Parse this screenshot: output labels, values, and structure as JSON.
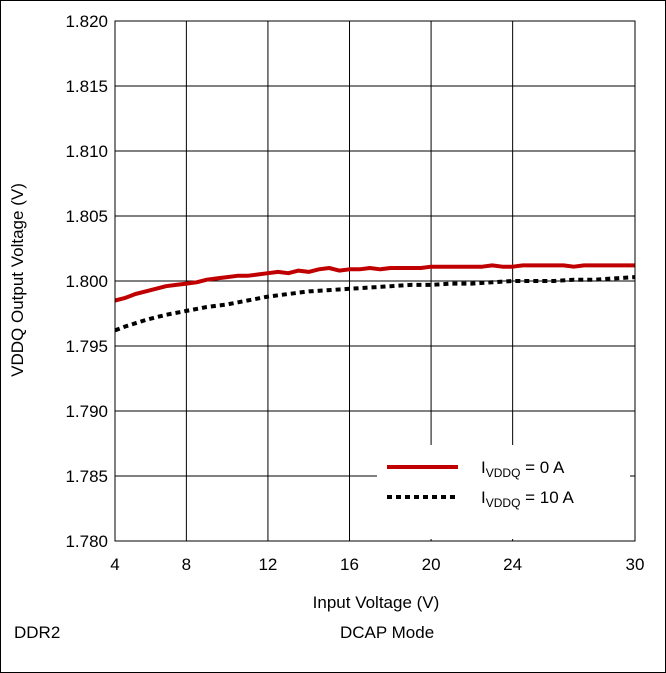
{
  "chart_data": {
    "type": "line",
    "xlabel": "Input Voltage (V)",
    "ylabel": "VDDQ Output Voltage (V)",
    "xlim": [
      4.5,
      30
    ],
    "ylim": [
      1.78,
      1.82
    ],
    "xticks": [
      4,
      8,
      12,
      16,
      20,
      24,
      30
    ],
    "xtick_labels": [
      "4",
      "8",
      "12",
      "16",
      "20",
      "24",
      "30"
    ],
    "yticks": [
      1.78,
      1.785,
      1.79,
      1.795,
      1.8,
      1.805,
      1.81,
      1.815,
      1.82
    ],
    "ytick_labels": [
      "1.780",
      "1.785",
      "1.790",
      "1.795",
      "1.800",
      "1.805",
      "1.810",
      "1.815",
      "1.820"
    ],
    "grid": true,
    "legend_position": "bottom-right",
    "series": [
      {
        "name": "IVDDQ = 0 A",
        "legend": {
          "main": "I",
          "sub": "VDDQ",
          "rest": " = 0 A"
        },
        "color": "#c00000",
        "style": "solid",
        "x": [
          4.5,
          5,
          5.5,
          6,
          6.5,
          7,
          7.5,
          8,
          8.5,
          9,
          9.5,
          10,
          10.5,
          11,
          11.5,
          12,
          12.5,
          13,
          13.5,
          14,
          14.5,
          15,
          15.5,
          16,
          16.5,
          17,
          17.5,
          18,
          18.5,
          19,
          19.5,
          20,
          21,
          22,
          22.5,
          23,
          23.5,
          24,
          24.5,
          25,
          26,
          26.5,
          27,
          27.5,
          28,
          29,
          30
        ],
        "y": [
          1.7985,
          1.7987,
          1.799,
          1.7992,
          1.7994,
          1.7996,
          1.7997,
          1.7998,
          1.7999,
          1.8001,
          1.8002,
          1.8003,
          1.8004,
          1.8004,
          1.8005,
          1.8006,
          1.8007,
          1.8006,
          1.8008,
          1.8007,
          1.8009,
          1.801,
          1.8008,
          1.8009,
          1.8009,
          1.801,
          1.8009,
          1.801,
          1.801,
          1.801,
          1.801,
          1.8011,
          1.8011,
          1.8011,
          1.8011,
          1.8012,
          1.8011,
          1.8011,
          1.8012,
          1.8012,
          1.8012,
          1.8012,
          1.8011,
          1.8012,
          1.8012,
          1.8012,
          1.8012
        ]
      },
      {
        "name": "IVDDQ = 10 A",
        "legend": {
          "main": "I",
          "sub": "VDDQ",
          "rest": " = 10 A"
        },
        "color": "#000000",
        "style": "dotted",
        "x": [
          4.5,
          5,
          6,
          7,
          8,
          9,
          10,
          11,
          12,
          13,
          14,
          15,
          16,
          17,
          18,
          19,
          20,
          21,
          22,
          23,
          24,
          25,
          26,
          27,
          28,
          29,
          30
        ],
        "y": [
          1.7962,
          1.7965,
          1.797,
          1.7974,
          1.7977,
          1.798,
          1.7982,
          1.7985,
          1.7988,
          1.799,
          1.7992,
          1.7993,
          1.7994,
          1.7995,
          1.7996,
          1.7997,
          1.7997,
          1.7998,
          1.7998,
          1.7999,
          1.8,
          1.8,
          1.8,
          1.8001,
          1.8001,
          1.8002,
          1.8003
        ]
      }
    ]
  },
  "footer": {
    "left_note": "DDR2",
    "right_note": "DCAP Mode"
  }
}
